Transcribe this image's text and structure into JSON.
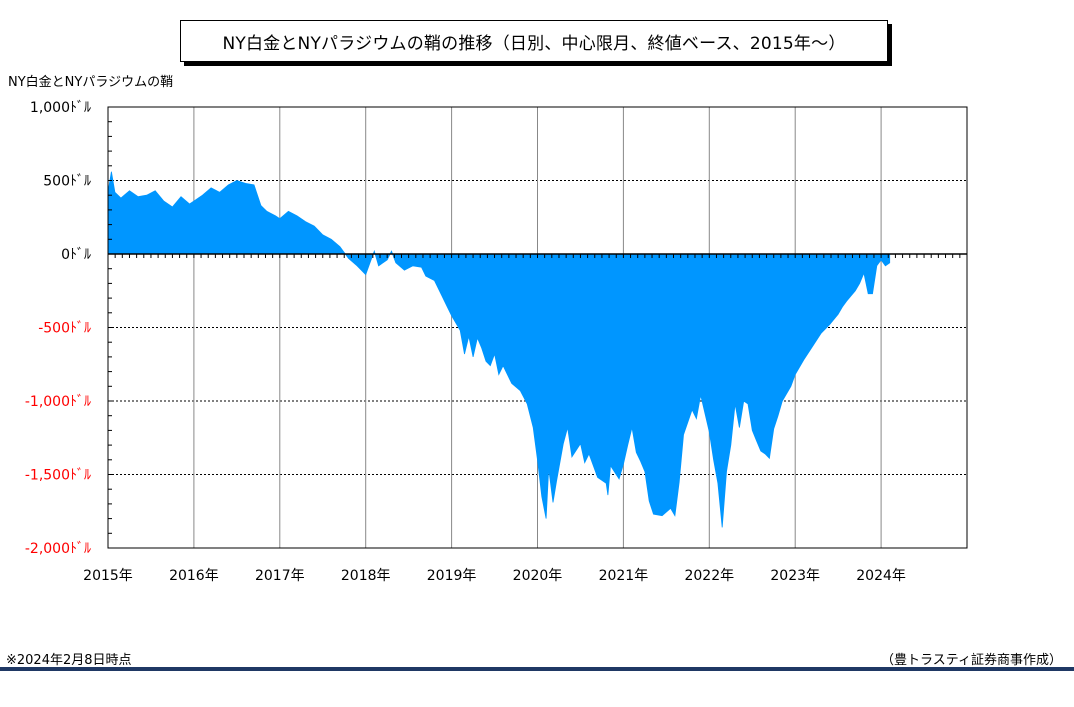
{
  "title": "NY白金とNYパラジウムの鞘の推移（日別、中心限月、終値ベース、2015年～）",
  "note": "※2024年2月8日時点",
  "credit": "（豊トラスティ証券商事作成）",
  "colors": {
    "fill": "#0096ff",
    "negative_label": "#ff0000",
    "rule": "#1f3864"
  },
  "chart_data": {
    "type": "area",
    "title": "NY白金とNYパラジウムの鞘の推移（日別、中心限月、終値ベース、2015年～）",
    "ylabel": "NY白金とNYパラジウムの鞘",
    "xlabel": "",
    "ylim": [
      -2000,
      1000
    ],
    "xlim": [
      2015.0,
      2025.0
    ],
    "yticks": [
      1000,
      500,
      0,
      -500,
      -1000,
      -1500,
      -2000
    ],
    "ytick_labels": [
      "1,000ﾄﾞﾙ",
      "500ﾄﾞﾙ",
      "0ﾄﾞﾙ",
      "-500ﾄﾞﾙ",
      "-1,000ﾄﾞﾙ",
      "-1,500ﾄﾞﾙ",
      "-2,000ﾄﾞﾙ"
    ],
    "xticks": [
      2015,
      2016,
      2017,
      2018,
      2019,
      2020,
      2021,
      2022,
      2023,
      2024
    ],
    "xtick_labels": [
      "2015年",
      "2016年",
      "2017年",
      "2018年",
      "2019年",
      "2020年",
      "2021年",
      "2022年",
      "2023年",
      "2024年"
    ],
    "grid": "horizontal dotted",
    "series": [
      {
        "values": [
          [
            2015.0,
            420
          ],
          [
            2015.04,
            560
          ],
          [
            2015.08,
            420
          ],
          [
            2015.15,
            380
          ],
          [
            2015.25,
            430
          ],
          [
            2015.35,
            390
          ],
          [
            2015.45,
            400
          ],
          [
            2015.55,
            430
          ],
          [
            2015.65,
            360
          ],
          [
            2015.75,
            320
          ],
          [
            2015.85,
            390
          ],
          [
            2015.95,
            340
          ],
          [
            2016.0,
            360
          ],
          [
            2016.1,
            400
          ],
          [
            2016.2,
            450
          ],
          [
            2016.3,
            420
          ],
          [
            2016.4,
            470
          ],
          [
            2016.5,
            500
          ],
          [
            2016.6,
            480
          ],
          [
            2016.7,
            470
          ],
          [
            2016.78,
            330
          ],
          [
            2016.85,
            290
          ],
          [
            2016.95,
            260
          ],
          [
            2017.0,
            240
          ],
          [
            2017.1,
            290
          ],
          [
            2017.2,
            260
          ],
          [
            2017.3,
            220
          ],
          [
            2017.4,
            190
          ],
          [
            2017.5,
            130
          ],
          [
            2017.6,
            100
          ],
          [
            2017.7,
            50
          ],
          [
            2017.8,
            -30
          ],
          [
            2017.9,
            -80
          ],
          [
            2018.0,
            -140
          ],
          [
            2018.05,
            -60
          ],
          [
            2018.1,
            20
          ],
          [
            2018.15,
            -80
          ],
          [
            2018.25,
            -40
          ],
          [
            2018.3,
            20
          ],
          [
            2018.35,
            -60
          ],
          [
            2018.45,
            -110
          ],
          [
            2018.55,
            -80
          ],
          [
            2018.65,
            -90
          ],
          [
            2018.7,
            -150
          ],
          [
            2018.8,
            -180
          ],
          [
            2018.9,
            -300
          ],
          [
            2018.95,
            -360
          ],
          [
            2019.0,
            -420
          ],
          [
            2019.1,
            -520
          ],
          [
            2019.15,
            -680
          ],
          [
            2019.2,
            -560
          ],
          [
            2019.25,
            -700
          ],
          [
            2019.3,
            -570
          ],
          [
            2019.35,
            -640
          ],
          [
            2019.4,
            -730
          ],
          [
            2019.45,
            -760
          ],
          [
            2019.5,
            -680
          ],
          [
            2019.55,
            -820
          ],
          [
            2019.6,
            -760
          ],
          [
            2019.7,
            -880
          ],
          [
            2019.8,
            -930
          ],
          [
            2019.88,
            -1020
          ],
          [
            2019.95,
            -1180
          ],
          [
            2020.0,
            -1400
          ],
          [
            2020.05,
            -1650
          ],
          [
            2020.1,
            -1800
          ],
          [
            2020.13,
            -1460
          ],
          [
            2020.18,
            -1690
          ],
          [
            2020.22,
            -1550
          ],
          [
            2020.3,
            -1290
          ],
          [
            2020.35,
            -1180
          ],
          [
            2020.4,
            -1380
          ],
          [
            2020.5,
            -1290
          ],
          [
            2020.55,
            -1420
          ],
          [
            2020.6,
            -1360
          ],
          [
            2020.7,
            -1520
          ],
          [
            2020.8,
            -1560
          ],
          [
            2020.82,
            -1640
          ],
          [
            2020.85,
            -1440
          ],
          [
            2020.95,
            -1530
          ],
          [
            2021.0,
            -1430
          ],
          [
            2021.05,
            -1300
          ],
          [
            2021.1,
            -1180
          ],
          [
            2021.15,
            -1350
          ],
          [
            2021.2,
            -1410
          ],
          [
            2021.25,
            -1480
          ],
          [
            2021.3,
            -1680
          ],
          [
            2021.35,
            -1770
          ],
          [
            2021.45,
            -1780
          ],
          [
            2021.55,
            -1730
          ],
          [
            2021.6,
            -1780
          ],
          [
            2021.65,
            -1550
          ],
          [
            2021.7,
            -1230
          ],
          [
            2021.8,
            -1060
          ],
          [
            2021.85,
            -1120
          ],
          [
            2021.9,
            -960
          ],
          [
            2022.0,
            -1210
          ],
          [
            2022.05,
            -1400
          ],
          [
            2022.1,
            -1560
          ],
          [
            2022.15,
            -1860
          ],
          [
            2022.2,
            -1480
          ],
          [
            2022.25,
            -1300
          ],
          [
            2022.3,
            -1020
          ],
          [
            2022.35,
            -1180
          ],
          [
            2022.4,
            -1000
          ],
          [
            2022.45,
            -1020
          ],
          [
            2022.5,
            -1200
          ],
          [
            2022.55,
            -1270
          ],
          [
            2022.6,
            -1340
          ],
          [
            2022.65,
            -1360
          ],
          [
            2022.7,
            -1390
          ],
          [
            2022.75,
            -1190
          ],
          [
            2022.8,
            -1100
          ],
          [
            2022.85,
            -1000
          ],
          [
            2022.95,
            -900
          ],
          [
            2023.0,
            -820
          ],
          [
            2023.1,
            -720
          ],
          [
            2023.2,
            -630
          ],
          [
            2023.3,
            -540
          ],
          [
            2023.4,
            -480
          ],
          [
            2023.5,
            -410
          ],
          [
            2023.55,
            -360
          ],
          [
            2023.6,
            -320
          ],
          [
            2023.7,
            -250
          ],
          [
            2023.75,
            -200
          ],
          [
            2023.8,
            -130
          ],
          [
            2023.85,
            -270
          ],
          [
            2023.9,
            -270
          ],
          [
            2023.95,
            -80
          ],
          [
            2024.0,
            -40
          ],
          [
            2024.05,
            -80
          ],
          [
            2024.1,
            -60
          ]
        ]
      }
    ]
  }
}
